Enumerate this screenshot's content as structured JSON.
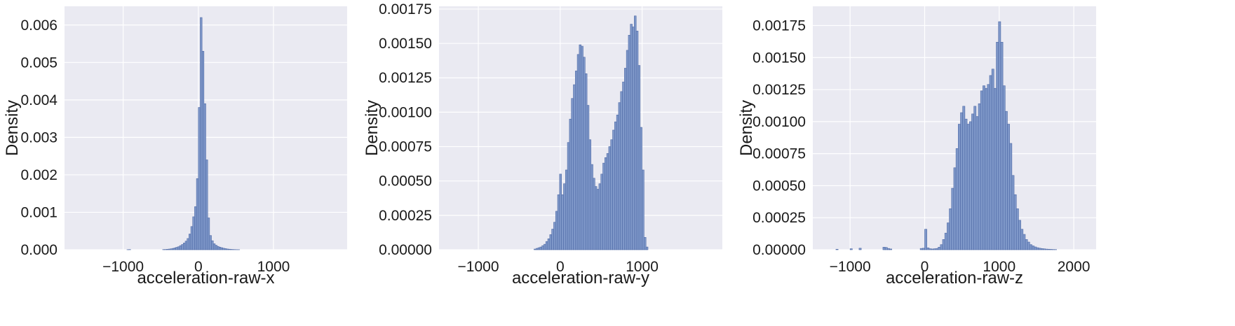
{
  "chart_data": [
    {
      "type": "histogram",
      "xlabel": "acceleration-raw-x",
      "ylabel": "Density",
      "xlim": [
        -1780,
        1980
      ],
      "ylim": [
        0,
        0.0065
      ],
      "xticks": [
        -1000,
        0,
        1000
      ],
      "xtick_labels": [
        "−1000",
        "0",
        "1000"
      ],
      "yticks": [
        0,
        0.001,
        0.002,
        0.003,
        0.004,
        0.005,
        0.006
      ],
      "ytick_labels": [
        "0.000",
        "0.001",
        "0.002",
        "0.003",
        "0.004",
        "0.005",
        "0.006"
      ],
      "grid": true,
      "bins": [
        [
          -950,
          3e-06
        ],
        [
          -925,
          6e-06
        ],
        [
          -475,
          6e-06
        ],
        [
          -450,
          8e-06
        ],
        [
          -425,
          1.2e-05
        ],
        [
          -400,
          1.8e-05
        ],
        [
          -375,
          2.5e-05
        ],
        [
          -350,
          3.5e-05
        ],
        [
          -325,
          4.8e-05
        ],
        [
          -300,
          6.5e-05
        ],
        [
          -275,
          8e-05
        ],
        [
          -250,
          0.00011
        ],
        [
          -225,
          0.00014
        ],
        [
          -200,
          0.00018
        ],
        [
          -175,
          0.00023
        ],
        [
          -150,
          0.0003
        ],
        [
          -125,
          0.00042
        ],
        [
          -100,
          0.00062
        ],
        [
          -75,
          0.00088
        ],
        [
          -50,
          0.00115
        ],
        [
          -25,
          0.0019
        ],
        [
          0,
          0.0038
        ],
        [
          25,
          0.0062
        ],
        [
          50,
          0.0053
        ],
        [
          75,
          0.0039
        ],
        [
          100,
          0.0024
        ],
        [
          125,
          0.00085
        ],
        [
          150,
          0.00038
        ],
        [
          175,
          0.00024
        ],
        [
          200,
          0.00016
        ],
        [
          225,
          0.00012
        ],
        [
          250,
          9e-05
        ],
        [
          275,
          7e-05
        ],
        [
          300,
          5.5e-05
        ],
        [
          325,
          4e-05
        ],
        [
          350,
          3e-05
        ],
        [
          375,
          2e-05
        ],
        [
          400,
          1.5e-05
        ],
        [
          425,
          1e-05
        ],
        [
          450,
          7e-06
        ],
        [
          475,
          5e-06
        ],
        [
          500,
          3e-06
        ],
        [
          525,
          2e-06
        ]
      ]
    },
    {
      "type": "histogram",
      "xlabel": "acceleration-raw-y",
      "ylabel": "Density",
      "xlim": [
        -1480,
        1980
      ],
      "ylim": [
        0,
        0.00177
      ],
      "xticks": [
        -1000,
        0,
        1000
      ],
      "xtick_labels": [
        "−1000",
        "0",
        "1000"
      ],
      "yticks": [
        0,
        0.00025,
        0.0005,
        0.00075,
        0.001,
        0.00125,
        0.0015,
        0.00175
      ],
      "ytick_labels": [
        "0.00000",
        "0.00025",
        "0.00050",
        "0.00075",
        "0.00100",
        "0.00125",
        "0.00150",
        "0.00175"
      ],
      "grid": true,
      "bins": [
        [
          -320,
          5e-06
        ],
        [
          -296,
          1e-05
        ],
        [
          -272,
          1.5e-05
        ],
        [
          -248,
          2e-05
        ],
        [
          -224,
          3e-05
        ],
        [
          -200,
          4e-05
        ],
        [
          -176,
          6e-05
        ],
        [
          -152,
          8e-05
        ],
        [
          -128,
          0.00011
        ],
        [
          -104,
          0.00015
        ],
        [
          -80,
          0.0002
        ],
        [
          -56,
          0.00028
        ],
        [
          -32,
          0.0004
        ],
        [
          -8,
          0.00055
        ],
        [
          16,
          0.0004
        ],
        [
          40,
          0.00048
        ],
        [
          64,
          0.00058
        ],
        [
          88,
          0.00078
        ],
        [
          112,
          0.00095
        ],
        [
          136,
          0.0011
        ],
        [
          160,
          0.0012
        ],
        [
          184,
          0.0013
        ],
        [
          208,
          0.00142
        ],
        [
          232,
          0.00149
        ],
        [
          256,
          0.00148
        ],
        [
          280,
          0.0014
        ],
        [
          304,
          0.00128
        ],
        [
          328,
          0.00105
        ],
        [
          352,
          0.0008
        ],
        [
          376,
          0.00062
        ],
        [
          400,
          0.00052
        ],
        [
          424,
          0.00046
        ],
        [
          448,
          0.00044
        ],
        [
          472,
          0.00048
        ],
        [
          496,
          0.00055
        ],
        [
          520,
          0.00063
        ],
        [
          544,
          0.00067
        ],
        [
          568,
          0.0007
        ],
        [
          592,
          0.00075
        ],
        [
          616,
          0.0008
        ],
        [
          640,
          0.00087
        ],
        [
          664,
          0.00093
        ],
        [
          688,
          0.00098
        ],
        [
          712,
          0.00107
        ],
        [
          736,
          0.00115
        ],
        [
          760,
          0.00122
        ],
        [
          784,
          0.00132
        ],
        [
          808,
          0.00145
        ],
        [
          832,
          0.00156
        ],
        [
          856,
          0.00164
        ],
        [
          880,
          0.00162
        ],
        [
          904,
          0.0017
        ],
        [
          928,
          0.00159
        ],
        [
          952,
          0.00134
        ],
        [
          976,
          0.00089
        ],
        [
          1000,
          0.00058
        ],
        [
          1024,
          9e-05
        ],
        [
          1048,
          2e-05
        ]
      ]
    },
    {
      "type": "histogram",
      "xlabel": "acceleration-raw-z",
      "ylabel": "Density",
      "xlim": [
        -1500,
        2300
      ],
      "ylim": [
        0,
        0.0019
      ],
      "xticks": [
        -1000,
        0,
        1000,
        2000
      ],
      "xtick_labels": [
        "−1000",
        "0",
        "1000",
        "2000"
      ],
      "yticks": [
        0,
        0.00025,
        0.0005,
        0.00075,
        0.001,
        0.00125,
        0.0015,
        0.00175
      ],
      "ytick_labels": [
        "0.00000",
        "0.00025",
        "0.00050",
        "0.00075",
        "0.00100",
        "0.00125",
        "0.00150",
        "0.00175"
      ],
      "grid": true,
      "bins": [
        [
          -1190,
          4e-06
        ],
        [
          -1000,
          8e-06
        ],
        [
          -880,
          1.2e-05
        ],
        [
          -560,
          2e-05
        ],
        [
          -530,
          1.8e-05
        ],
        [
          -500,
          1e-05
        ],
        [
          -470,
          6e-06
        ],
        [
          -60,
          1e-05
        ],
        [
          -30,
          1.2e-05
        ],
        [
          0,
          0.00016
        ],
        [
          30,
          1.5e-05
        ],
        [
          60,
          8e-06
        ],
        [
          90,
          6e-06
        ],
        [
          120,
          8e-06
        ],
        [
          150,
          1e-05
        ],
        [
          180,
          2e-05
        ],
        [
          210,
          4e-05
        ],
        [
          240,
          8e-05
        ],
        [
          270,
          0.00013
        ],
        [
          300,
          0.00021
        ],
        [
          330,
          0.00032
        ],
        [
          360,
          0.00048
        ],
        [
          390,
          0.00064
        ],
        [
          420,
          0.00079
        ],
        [
          450,
          0.00098
        ],
        [
          480,
          0.00107
        ],
        [
          510,
          0.00112
        ],
        [
          540,
          0.00102
        ],
        [
          570,
          0.00098
        ],
        [
          600,
          0.001
        ],
        [
          630,
          0.00106
        ],
        [
          660,
          0.00112
        ],
        [
          690,
          0.00104
        ],
        [
          720,
          0.00114
        ],
        [
          750,
          0.00124
        ],
        [
          780,
          0.00128
        ],
        [
          810,
          0.00126
        ],
        [
          840,
          0.00129
        ],
        [
          870,
          0.00136
        ],
        [
          900,
          0.00141
        ],
        [
          930,
          0.00126
        ],
        [
          960,
          0.00162
        ],
        [
          990,
          0.00178
        ],
        [
          1020,
          0.00162
        ],
        [
          1050,
          0.00128
        ],
        [
          1080,
          0.00108
        ],
        [
          1110,
          0.00098
        ],
        [
          1140,
          0.00083
        ],
        [
          1170,
          0.00058
        ],
        [
          1200,
          0.00043
        ],
        [
          1230,
          0.00032
        ],
        [
          1260,
          0.00023
        ],
        [
          1290,
          0.00016
        ],
        [
          1320,
          0.00012
        ],
        [
          1350,
          8e-05
        ],
        [
          1380,
          6e-05
        ],
        [
          1410,
          4e-05
        ],
        [
          1440,
          3e-05
        ],
        [
          1470,
          2.2e-05
        ],
        [
          1500,
          1.6e-05
        ],
        [
          1530,
          1.2e-05
        ],
        [
          1560,
          9e-06
        ],
        [
          1590,
          7e-06
        ],
        [
          1620,
          5e-06
        ],
        [
          1650,
          4e-06
        ],
        [
          1680,
          3e-06
        ],
        [
          1710,
          2e-06
        ],
        [
          1740,
          1.5e-06
        ]
      ]
    }
  ],
  "colors": {
    "bar_fill": "#7f98c9",
    "bar_edge": "#4f6aa6",
    "panel_bg": "#eaeaf2",
    "grid": "#ffffff"
  }
}
